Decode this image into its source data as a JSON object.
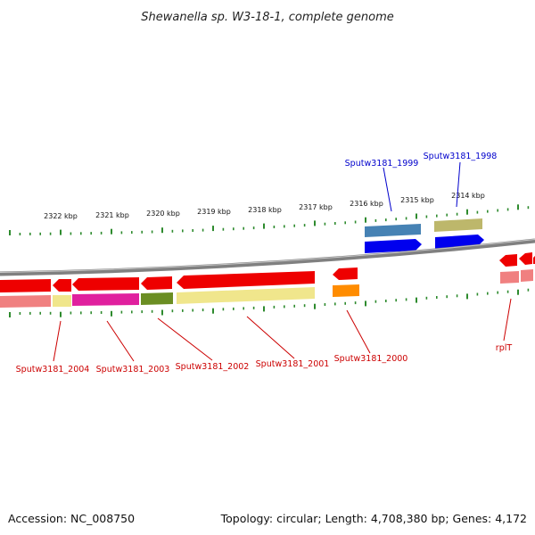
{
  "title": "Shewanella sp. W3-18-1, complete genome",
  "footer": {
    "accession": "Accession: NC_008750",
    "topology": "Topology: circular; Length: 4,708,380 bp; Genes: 4,172"
  },
  "scale_labels": [
    "2322 kbp",
    "2321 kbp",
    "2320 kbp",
    "2319 kbp",
    "2318 kbp",
    "2317 kbp",
    "2316 kbp",
    "2315 kbp",
    "2314 kbp"
  ],
  "gene_labels": {
    "sputw3181_1999": "Sputw3181_1999",
    "sputw3181_1998": "Sputw3181_1998",
    "sputw3181_2004": "Sputw3181_2004",
    "sputw3181_2003": "Sputw3181_2003",
    "sputw3181_2002": "Sputw3181_2002",
    "sputw3181_2001": "Sputw3181_2001",
    "sputw3181_2000": "Sputw3181_2000",
    "rplT": "rplT"
  },
  "colors": {
    "backbone": "#808080",
    "tick": "#2e8b2e",
    "cds_reverse": "#ee0000",
    "cds_forward": "#0000ee",
    "label_reverse": "#cc0000",
    "label_forward": "#0000cc",
    "cog_salmon": "#f08080",
    "cog_khaki": "#f0e68c",
    "cog_magenta": "#e0209e",
    "cog_olive": "#6b8e23",
    "cog_orange": "#ff8c00",
    "cog_steelblue": "#4682b4",
    "cog_darkkhaki": "#bdb76b"
  }
}
